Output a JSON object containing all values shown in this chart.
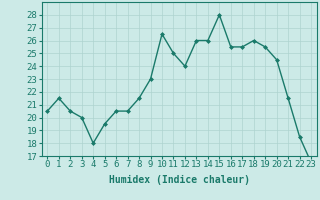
{
  "x": [
    0,
    1,
    2,
    3,
    4,
    5,
    6,
    7,
    8,
    9,
    10,
    11,
    12,
    13,
    14,
    15,
    16,
    17,
    18,
    19,
    20,
    21,
    22,
    23
  ],
  "y": [
    20.5,
    21.5,
    20.5,
    20.0,
    18.0,
    19.5,
    20.5,
    20.5,
    21.5,
    23.0,
    26.5,
    25.0,
    24.0,
    26.0,
    26.0,
    28.0,
    25.5,
    25.5,
    26.0,
    25.5,
    24.5,
    21.5,
    18.5,
    16.5
  ],
  "line_color": "#1a7a6a",
  "marker": "D",
  "marker_size": 2.0,
  "line_width": 1.0,
  "bg_color": "#cceae7",
  "grid_color": "#aed4cf",
  "xlabel": "Humidex (Indice chaleur)",
  "ylim": [
    17,
    29
  ],
  "yticks": [
    17,
    18,
    19,
    20,
    21,
    22,
    23,
    24,
    25,
    26,
    27,
    28
  ],
  "xticks": [
    0,
    1,
    2,
    3,
    4,
    5,
    6,
    7,
    8,
    9,
    10,
    11,
    12,
    13,
    14,
    15,
    16,
    17,
    18,
    19,
    20,
    21,
    22,
    23
  ],
  "xlabel_fontsize": 7,
  "tick_fontsize": 6.5
}
